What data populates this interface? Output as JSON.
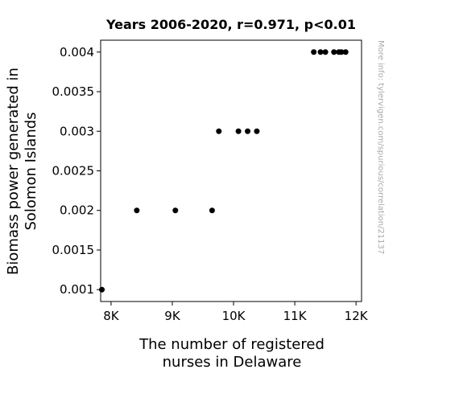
{
  "chart_data": {
    "type": "scatter",
    "title": "Years 2006-2020, r=0.971, p<0.01",
    "xlabel_lines": [
      "The number of registered",
      "nurses in Delaware"
    ],
    "ylabel_lines": [
      "Biomass power generated in",
      "Solomon Islands"
    ],
    "x_ticks": [
      {
        "value": 8000,
        "label": "8K"
      },
      {
        "value": 9000,
        "label": "9K"
      },
      {
        "value": 10000,
        "label": "10K"
      },
      {
        "value": 11000,
        "label": "11K"
      },
      {
        "value": 12000,
        "label": "12K"
      }
    ],
    "y_ticks": [
      {
        "value": 0.001,
        "label": "0.001"
      },
      {
        "value": 0.0015,
        "label": "0.0015"
      },
      {
        "value": 0.002,
        "label": "0.002"
      },
      {
        "value": 0.0025,
        "label": "0.0025"
      },
      {
        "value": 0.003,
        "label": "0.003"
      },
      {
        "value": 0.0035,
        "label": "0.0035"
      },
      {
        "value": 0.004,
        "label": "0.004"
      }
    ],
    "xlim": [
      7830,
      12090
    ],
    "ylim": [
      0.00085,
      0.00415
    ],
    "grid": false,
    "marker_color": "#000000",
    "points": [
      {
        "x": 7850,
        "y": 0.001
      },
      {
        "x": 8420,
        "y": 0.002
      },
      {
        "x": 9050,
        "y": 0.002
      },
      {
        "x": 9650,
        "y": 0.002
      },
      {
        "x": 9760,
        "y": 0.003
      },
      {
        "x": 10080,
        "y": 0.003
      },
      {
        "x": 10230,
        "y": 0.003
      },
      {
        "x": 10380,
        "y": 0.003
      },
      {
        "x": 11310,
        "y": 0.004
      },
      {
        "x": 11420,
        "y": 0.004
      },
      {
        "x": 11500,
        "y": 0.004
      },
      {
        "x": 11640,
        "y": 0.004
      },
      {
        "x": 11720,
        "y": 0.004
      },
      {
        "x": 11760,
        "y": 0.004
      },
      {
        "x": 11830,
        "y": 0.004
      }
    ]
  },
  "watermark": "More info: tylervigen.com/spurious/correlation/21137"
}
